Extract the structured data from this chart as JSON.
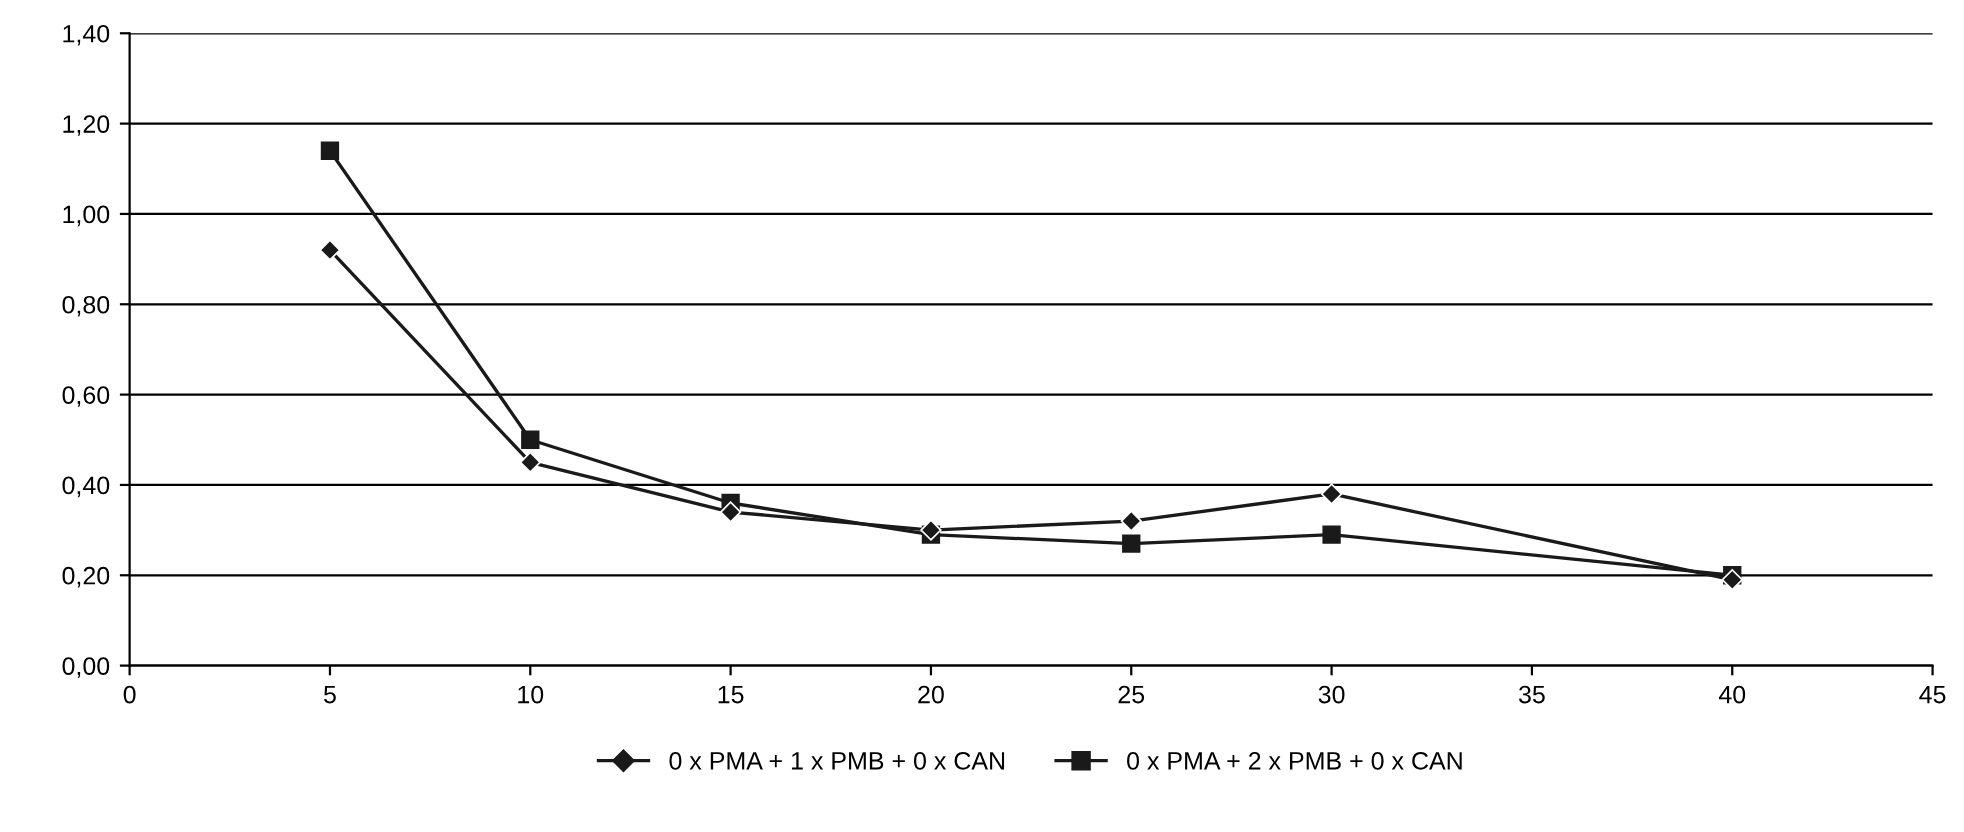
{
  "chart_data": {
    "type": "line",
    "x": [
      5,
      10,
      15,
      20,
      25,
      30,
      40
    ],
    "series": [
      {
        "name": "0 x PMA + 1 x PMB + 0 x CAN",
        "color": "#1a1a1a",
        "marker": "diamond",
        "values": [
          0.92,
          0.45,
          0.34,
          0.3,
          0.32,
          0.38,
          0.19
        ]
      },
      {
        "name": "0 x PMA + 2 x PMB + 0 x CAN",
        "color": "#1a1a1a",
        "marker": "square",
        "values": [
          1.14,
          0.5,
          0.36,
          0.29,
          0.27,
          0.29,
          0.2
        ]
      }
    ],
    "xlim": [
      0,
      45
    ],
    "xticks": [
      0,
      5,
      10,
      15,
      20,
      25,
      30,
      35,
      40,
      45
    ],
    "ylim": [
      0,
      1.4
    ],
    "yticks": [
      {
        "value": 0,
        "label": "0,00"
      },
      {
        "value": 0.2,
        "label": "0,20"
      },
      {
        "value": 0.4,
        "label": "0,40"
      },
      {
        "value": 0.6,
        "label": "0,60"
      },
      {
        "value": 0.8,
        "label": "0,80"
      },
      {
        "value": 1.0,
        "label": "1,00"
      },
      {
        "value": 1.2,
        "label": "1,20"
      },
      {
        "value": 1.4,
        "label": "1,40"
      }
    ],
    "grid": "y",
    "legend": "bottom",
    "line_style": "solid"
  }
}
